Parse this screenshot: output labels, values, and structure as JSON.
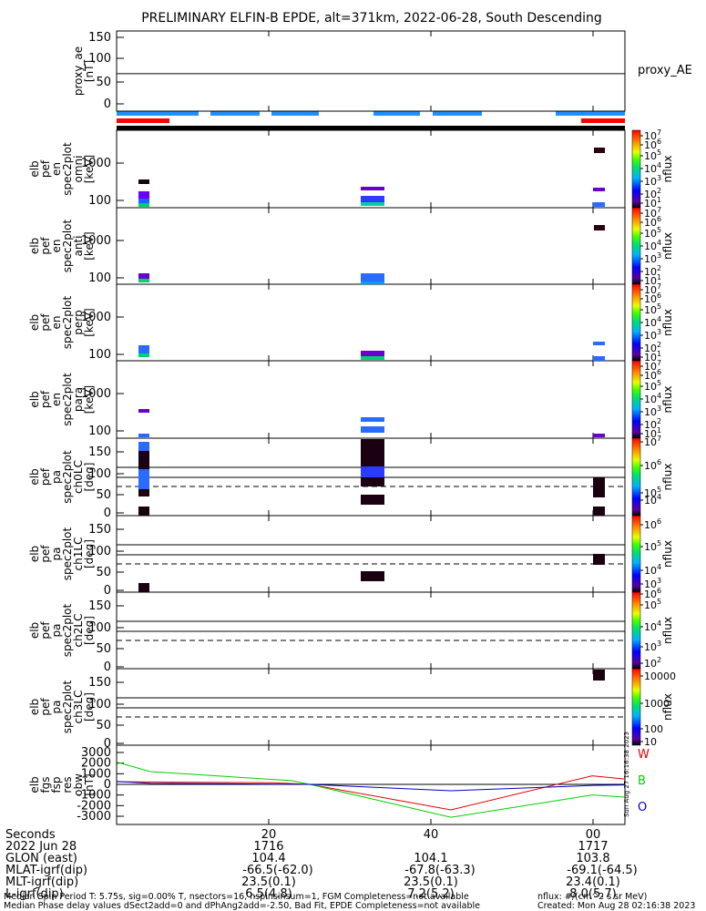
{
  "title": "PRELIMINARY ELFIN-B EPDE, alt=371km, 2022-06-28, South Descending",
  "colors": {
    "science_zone_bar": "#1e90ff",
    "sector_bar": "#ff0000",
    "trace_W": "#e00000",
    "trace_B": "#00d000",
    "trace_O": "#0000cc",
    "black": "#000000"
  },
  "chart_data": {
    "type": "heatmap",
    "x_ticks": [
      "20",
      "40",
      "00"
    ],
    "panels": [
      {
        "id": "proxy_ae",
        "ylabel": [
          "proxy_ae",
          "[nT]"
        ],
        "y_ticks": [
          "150",
          "100",
          "50",
          "0"
        ],
        "y_range": [
          -15,
          160
        ],
        "right_label": "proxy_AE",
        "line_value": 68
      },
      {
        "id": "en_omni",
        "ylabel": [
          "elb",
          "pef",
          "en",
          "spec2plot",
          "omni",
          "[keV]"
        ],
        "y_ticks": [
          "1000",
          "100"
        ],
        "yscale": "log",
        "colorbar": "rainbow_log",
        "colorbar_ticks": [
          "10^7",
          "10^6",
          "10^5",
          "10^4",
          "10^3",
          "10^2",
          "10^1"
        ],
        "colorbar_label": "nflux"
      },
      {
        "id": "en_anti",
        "ylabel": [
          "elb",
          "pef",
          "en",
          "spec2plot",
          "anti",
          "[keV]"
        ],
        "y_ticks": [
          "1000",
          "100"
        ],
        "yscale": "log",
        "colorbar": "rainbow_log",
        "colorbar_ticks": [
          "10^7",
          "10^6",
          "10^5",
          "10^4",
          "10^3",
          "10^2",
          "10^1"
        ],
        "colorbar_label": "nflux"
      },
      {
        "id": "en_perp",
        "ylabel": [
          "elb",
          "pef",
          "en",
          "spec2plot",
          "perp",
          "[keV]"
        ],
        "y_ticks": [
          "1000",
          "100"
        ],
        "yscale": "log",
        "colorbar": "rainbow_log",
        "colorbar_ticks": [
          "10^7",
          "10^6",
          "10^5",
          "10^4",
          "10^3",
          "10^2",
          "10^1"
        ],
        "colorbar_label": "nflux"
      },
      {
        "id": "en_para",
        "ylabel": [
          "elb",
          "pef",
          "en",
          "spec2plot",
          "para",
          "[keV]"
        ],
        "y_ticks": [
          "1000",
          "100"
        ],
        "yscale": "log",
        "colorbar": "rainbow_log",
        "colorbar_ticks": [
          "10^7",
          "10^6",
          "10^5",
          "10^4",
          "10^3",
          "10^2",
          "10^1"
        ],
        "colorbar_label": "nflux"
      },
      {
        "id": "pa_ch0",
        "ylabel": [
          "elb",
          "pef",
          "pa",
          "spec2plot",
          "ch0LC",
          "[deg]"
        ],
        "y_ticks": [
          "150",
          "100",
          "50",
          "0"
        ],
        "colorbar": "rainbow_log",
        "colorbar_ticks": [
          "10^7",
          "10^6",
          "10^5",
          "10^4"
        ],
        "colorbar_label": "nflux"
      },
      {
        "id": "pa_ch1",
        "ylabel": [
          "elb",
          "pef",
          "pa",
          "spec2plot",
          "ch1LC",
          "[deg]"
        ],
        "y_ticks": [
          "150",
          "100",
          "50",
          "0"
        ],
        "colorbar": "rainbow_log",
        "colorbar_ticks": [
          "10^6",
          "10^5",
          "10^4",
          "10^3"
        ],
        "colorbar_label": "nflux"
      },
      {
        "id": "pa_ch2",
        "ylabel": [
          "elb",
          "pef",
          "pa",
          "spec2plot",
          "ch2LC",
          "[deg]"
        ],
        "y_ticks": [
          "150",
          "100",
          "50",
          "0"
        ],
        "colorbar": "rainbow_log",
        "colorbar_ticks": [
          "10^6",
          "10^5",
          "10^4",
          "10^3",
          "10^2"
        ],
        "colorbar_label": "nflux"
      },
      {
        "id": "pa_ch3",
        "ylabel": [
          "elb",
          "pef",
          "pa",
          "spec2plot",
          "ch3LC",
          "[deg]"
        ],
        "y_ticks": [
          "150",
          "100",
          "50",
          "0"
        ],
        "colorbar": "rainbow_log",
        "colorbar_ticks": [
          "10000",
          "1000",
          "100",
          "10"
        ],
        "colorbar_label": "nflux"
      },
      {
        "id": "bt89",
        "ylabel": [
          "elb",
          "fgs",
          "fsp",
          "res",
          "obw",
          "[nT]"
        ],
        "y_ticks": [
          "3000",
          "2000",
          "1000",
          "0",
          "-1000",
          "-2000",
          "-3000"
        ],
        "y_range": [
          -3600,
          3600
        ],
        "series": [
          {
            "name": "W",
            "color": "#e00000"
          },
          {
            "name": "B",
            "color": "#00d000"
          },
          {
            "name": "O",
            "color": "#0000cc"
          }
        ],
        "side_text": "Sun Aug 27 16:16:38 2023"
      }
    ]
  },
  "ephemeris": [
    {
      "label": "Seconds",
      "values": [
        "20",
        "40",
        "00"
      ]
    },
    {
      "label": "2022 Jun 28",
      "values": [
        "1716",
        "",
        "1717"
      ]
    },
    {
      "label": "GLON (east)",
      "values": [
        "104.4",
        "104.1",
        "103.8"
      ]
    },
    {
      "label": "MLAT-igrf(dip)",
      "values": [
        "-66.5(-62.0)",
        "-67.8(-63.3)",
        "-69.1(-64.5)"
      ]
    },
    {
      "label": "MLT-igrf(dip)",
      "values": [
        "23.5(0.1)",
        "23.5(0.1)",
        "23.4(0.1)"
      ]
    },
    {
      "label": "L-igrf(dip)",
      "values": [
        "6.5(4.8)",
        "7.2(5.2)",
        "8.0(5.7)"
      ]
    }
  ],
  "footer": {
    "line1": "Median Spin Period T: 5.75s, sig=0.00% T, nsectors=16, nspinsinsum=1, FGM Completeness=not available",
    "line2": "Median Phase delay values dSect2add=0 and dPhAng2add=-2.50, Bad Fit, EPDE Completeness=not available",
    "units": "nflux: #/(cm^2 s sr MeV)",
    "created": "Created: Mon Aug 28 02:16:38 2023"
  }
}
